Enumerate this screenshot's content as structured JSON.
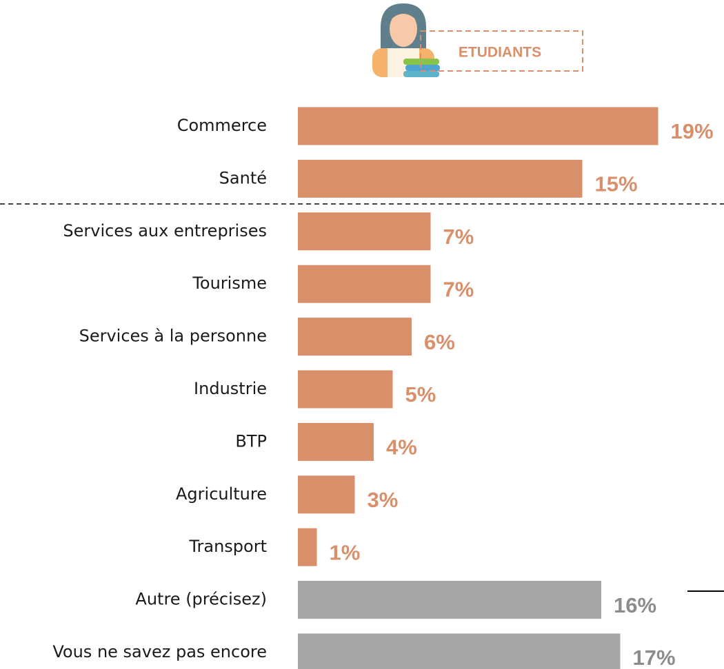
{
  "chart_data": {
    "type": "bar",
    "orientation": "horizontal",
    "title": "ETUDIANTS",
    "categories": [
      "Commerce",
      "Santé",
      "Services aux entreprises",
      "Tourisme",
      "Services à la personne",
      "Industrie",
      "BTP",
      "Agriculture",
      "Transport",
      "Autre (précisez)",
      "Vous ne savez pas encore"
    ],
    "values": [
      19,
      15,
      7,
      7,
      6,
      5,
      4,
      3,
      1,
      16,
      17
    ],
    "value_labels": [
      "19%",
      "15%",
      "7%",
      "7%",
      "6%",
      "5%",
      "4%",
      "3%",
      "1%",
      "16%",
      "17%"
    ],
    "colors": [
      "#d98f6a",
      "#d98f6a",
      "#d98f6a",
      "#d98f6a",
      "#d98f6a",
      "#d98f6a",
      "#d98f6a",
      "#d98f6a",
      "#d98f6a",
      "#a6a6a6",
      "#a6a6a6"
    ],
    "label_colors": [
      "#d98f6a",
      "#d98f6a",
      "#d98f6a",
      "#d98f6a",
      "#d98f6a",
      "#d98f6a",
      "#d98f6a",
      "#d98f6a",
      "#d98f6a",
      "#8c8c8c",
      "#8c8c8c"
    ]
  }
}
